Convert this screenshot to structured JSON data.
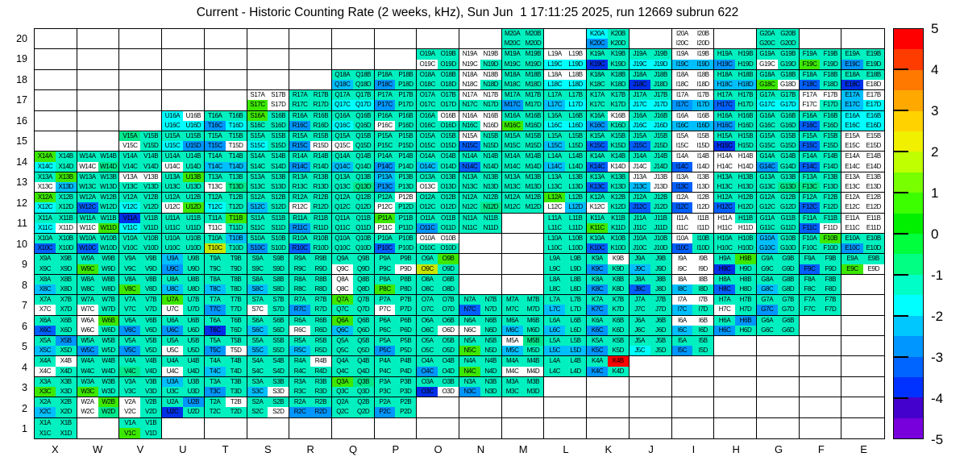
{
  "title": "Current - Historic Counting Rate (2 weeks, kHz), Sun Jun  1 17:11:25 2025, run 12669 subrun 622",
  "chart_data": {
    "type": "heatmap",
    "title": "Current - Historic Counting Rate (2 weeks, kHz), Sun Jun  1 17:11:25 2025, run 12669 subrun 622",
    "columns": [
      "X",
      "W",
      "V",
      "U",
      "T",
      "S",
      "R",
      "Q",
      "P",
      "O",
      "N",
      "M",
      "L",
      "K",
      "J",
      "I",
      "H",
      "G",
      "F",
      "E"
    ],
    "rows": [
      20,
      19,
      18,
      17,
      16,
      15,
      14,
      13,
      12,
      11,
      10,
      9,
      8,
      7,
      6,
      5,
      4,
      3,
      2,
      1
    ],
    "sub_channels": [
      "A",
      "B",
      "C",
      "D"
    ],
    "colorbar": {
      "range": [
        -5,
        5
      ],
      "ticks": [
        "5",
        "4",
        "3",
        "2",
        "1",
        "0",
        "-1",
        "-2",
        "-3",
        "-4",
        "-5"
      ],
      "band_colors_top_to_bottom": [
        "#FF0000",
        "#FF3C00",
        "#FF7800",
        "#FFA800",
        "#FFD200",
        "#F0F000",
        "#C0FF00",
        "#78FF00",
        "#3CFF00",
        "#00F000",
        "#00FF3C",
        "#00FF82",
        "#00FFC8",
        "#00FFFF",
        "#00C8FF",
        "#0096FF",
        "#0064FF",
        "#0032FF",
        "#4400CC",
        "#7700DD"
      ]
    },
    "palette": {
      "t": "#00F0C0",
      "c": "#00FFFF",
      "l": "#00BFFF",
      "b": "#0096FF",
      "B": "#0060FF",
      "n": "#0030E8",
      "g": "#3CE800",
      "s": "#00E88C",
      "y": "#C8E800",
      "r": "#FF0000",
      "w": "#FFFFFF"
    },
    "palette_approx_values": {
      "t": -1.2,
      "c": -1.8,
      "l": -2.2,
      "b": -2.7,
      "B": -3.2,
      "n": -3.7,
      "g": 0.8,
      "s": -0.6,
      "y": 2.3,
      "r": 4.8,
      "w": null
    },
    "cells": {
      "M20": "tttt",
      "K20": "ctbt",
      "I20": "wwww",
      "G20": "tttt",
      "O19": "ttwt",
      "N19": "wwwt",
      "M19": "tttt",
      "L19": "wwcc",
      "K19": "ttnt",
      "J19": "ttcc",
      "I19": "wwll",
      "H19": "ttbt",
      "G19": "ttwt",
      "F19": "ttgt",
      "E19": "ttbt",
      "Q18": "ttlt",
      "P18": "ttbt",
      "O18": "tttt",
      "N18": "wwwt",
      "M18": "tttt",
      "L18": "wwcc",
      "K18": "tttt",
      "J18": "ttnt",
      "I18": "wwww",
      "H18": "ttll",
      "G18": "ttgw",
      "F18": "ttBt",
      "E18": "ttnw",
      "S17": "wwgw",
      "R17": "tttt",
      "Q17": "ttcc",
      "P17": "ttbt",
      "O17": "tttt",
      "N17": "wwtt",
      "M17": "ttbt",
      "L17": "ttlc",
      "K17": "tttt",
      "J17": "ttcc",
      "I17": "wwbl",
      "H17": "ttBt",
      "G17": "ttcc",
      "F17": "wwwt",
      "E17": "lwlc",
      "U16": "cwcc",
      "T16": "ttbc",
      "S16": "gttt",
      "R16": "ttbt",
      "Q16": "ttct",
      "P16": "ttwt",
      "O16": "twtt",
      "N16": "wwtw",
      "M16": "ttgt",
      "L16": "ttcc",
      "K16": "twbt",
      "J16": "ttcc",
      "I16": "wwll",
      "H16": "ttbt",
      "G16": "tttt",
      "F16": "ttBt",
      "E16": "cccc",
      "V15": "stwt",
      "U15": "ttcb",
      "T15": "ttbw",
      "S15": "ttct",
      "R15": "ttbw",
      "Q15": "ttwt",
      "P15": "tttt",
      "O15": "tttt",
      "N15": "wtBt",
      "M15": "tttt",
      "L15": "ttlt",
      "K15": "ttBt",
      "J15": "ttBt",
      "I15": "wwww",
      "H15": "ttnt",
      "G15": "tttt",
      "F15": "ttBt",
      "E15": "wwww",
      "X14": "gtct",
      "W14": "ttws",
      "V14": "tttt",
      "U14": "ttwt",
      "T14": "ttll",
      "S14": "tttt",
      "R14": "ttbt",
      "Q14": "ttlt",
      "P14": "ttbt",
      "O14": "ttlt",
      "N14": "ttBt",
      "M14": "tttt",
      "L14": "ttlt",
      "K14": "ttBw",
      "J14": "ttwt",
      "I14": "wwBw",
      "H14": "wwww",
      "G14": "ttbt",
      "F14": "ttBt",
      "E14": "wwww",
      "X13": "tgwl",
      "W13": "tttt",
      "V13": "wwtt",
      "U13": "tgtt",
      "T13": "ttws",
      "S13": "tttt",
      "R13": "tttt",
      "Q13": "ttts",
      "P13": "ltbt",
      "O13": "ttwt",
      "N13": "tttt",
      "M13": "tttt",
      "L13": "tttt",
      "K13": "ttBt",
      "J13": "wwlw",
      "I13": "wwBw",
      "H13": "tttt",
      "G13": "ttts",
      "F13": "ttst",
      "E13": "wwww",
      "X12": "gtct",
      "W12": "ttBt",
      "V12": "ttct",
      "U12": "ttwg",
      "T12": "ttct",
      "S12": "ttlt",
      "R12": "ttwt",
      "Q12": "tttt",
      "P12": "twwt",
      "O12": "tttt",
      "N12": "ttts",
      "M12": "tttt",
      "L12": "gtwl",
      "K12": "ttwt",
      "J12": "ttBt",
      "I12": "wwBw",
      "H12": "ttBt",
      "G12": "tttt",
      "F12": "ttBt",
      "E12": "wwww",
      "X11": "ttcw",
      "W11": "ttwg",
      "V11": "ntct",
      "U11": "tttt",
      "T11": "tgwt",
      "S11": "tttt",
      "R11": "ttbt",
      "Q11": "tttt",
      "P11": "gtwt",
      "O11": "ttbt",
      "N11": "tttt",
      "L11": "tttt",
      "K11": "ttgt",
      "J11": "tttt",
      "I11": "wwww",
      "H11": "wtww",
      "G11": "tttt",
      "F11": "ttBw",
      "E11": "wwww",
      "X10": "ttBt",
      "W10": "ttBt",
      "V10": "tttt",
      "U10": "tttt",
      "T10": "tlyt",
      "S10": "ttbt",
      "R10": "ttBt",
      "Q10": "tttt",
      "P10": "ttBt",
      "O10": "wwtt",
      "L10": "tttt",
      "K10": "ttBt",
      "J10": "tttt",
      "I10": "wtBt",
      "H10": "tttt",
      "G10": "ltlt",
      "F10": "tgtt",
      "E10": "ttbt",
      "X9": "tttt",
      "W9": "ttgt",
      "V9": "tttt",
      "U9": "ltbt",
      "T9": "tttt",
      "S9": "tttt",
      "R9": "tttt",
      "Q9": "ttwt",
      "P9": "tttw",
      "O9": "tgyt",
      "L9": "tttt",
      "K9": "twbt",
      "J9": "ttlt",
      "I9": "wwww",
      "H9": "tgnt",
      "G9": "tttt",
      "F9": "ttBt",
      "E9": "ttgw",
      "X8": "ttlt",
      "W8": "tttt",
      "V8": "ttgt",
      "U8": "ttlt",
      "T8": "ttlt",
      "S8": "ttlt",
      "R8": "tttt",
      "Q8": "wtwt",
      "P8": "ttgt",
      "O8": "tttt",
      "L8": "tttt",
      "K8": "ttbt",
      "J8": "ttBt",
      "I8": "wwlt",
      "H8": "ttBt",
      "G8": "ttlt",
      "F8": "tttt",
      "X7": "ttwt",
      "W7": "ttwt",
      "V7": "tttt",
      "U7": "gtwt",
      "T7": "ttbt",
      "S7": "ttwt",
      "R7": "ttbt",
      "Q7": "gttt",
      "P7": "ttwt",
      "O7": "tttt",
      "N7": "ttBt",
      "M7": "tttt",
      "L7": "ttlt",
      "K7": "ttbt",
      "J7": "tttt",
      "I7": "wwlt",
      "H7": "ttwt",
      "G7": "ttbt",
      "F7": "tttt",
      "X6": "ttBt",
      "W6": "wgwt",
      "V6": "ttbt",
      "U6": "ttbt",
      "T6": "ttnt",
      "S6": "ttlt",
      "R6": "ttwt",
      "Q6": "gtlt",
      "P6": "tttt",
      "O6": "tttw",
      "N6": "ttwt",
      "M6": "ttlt",
      "L6": "ttlt",
      "K6": "ttbt",
      "J6": "tttt",
      "I6": "wwlt",
      "H6": "tbbt",
      "G6": "tttt",
      "X5": "tblt",
      "W5": "ttbt",
      "V5": "ttbt",
      "U5": "ttwt",
      "T5": "ttbw",
      "S5": "ttlt",
      "R5": "ttlt",
      "Q5": "tttt",
      "P5": "ttbt",
      "O5": "tttt",
      "N5": "ttgt",
      "M5": "wslt",
      "L5": "ttll",
      "K5": "ttbt",
      "J5": "ttct",
      "I5": "ttbt",
      "X4": "twwt",
      "W4": "tttt",
      "V4": "ttst",
      "U4": "ttwt",
      "T4": "ttlt",
      "S4": "tttt",
      "R4": "twtt",
      "Q4": "tttt",
      "P4": "tttt",
      "O4": "ttbt",
      "N4": "ttgt",
      "M4": "ttww",
      "L4": "tttt",
      "K4": "trbt",
      "X3": "ttgt",
      "W3": "ttgt",
      "V3": "tttt",
      "U3": "lttt",
      "T3": "ttbt",
      "S3": "ttlw",
      "R3": "tttt",
      "Q3": "gstt",
      "P3": "tttt",
      "O3": "ttnw",
      "N3": "ttbt",
      "M3": "tttt",
      "X2": "ttlt",
      "W2": "wgws",
      "V2": "wtwt",
      "U2": "tbnt",
      "T2": "twtt",
      "S2": "tttw",
      "R2": "ttbb",
      "Q2": "tttt",
      "P2": "ttbt",
      "X1": "tttt",
      "V1": "ttgt"
    }
  }
}
